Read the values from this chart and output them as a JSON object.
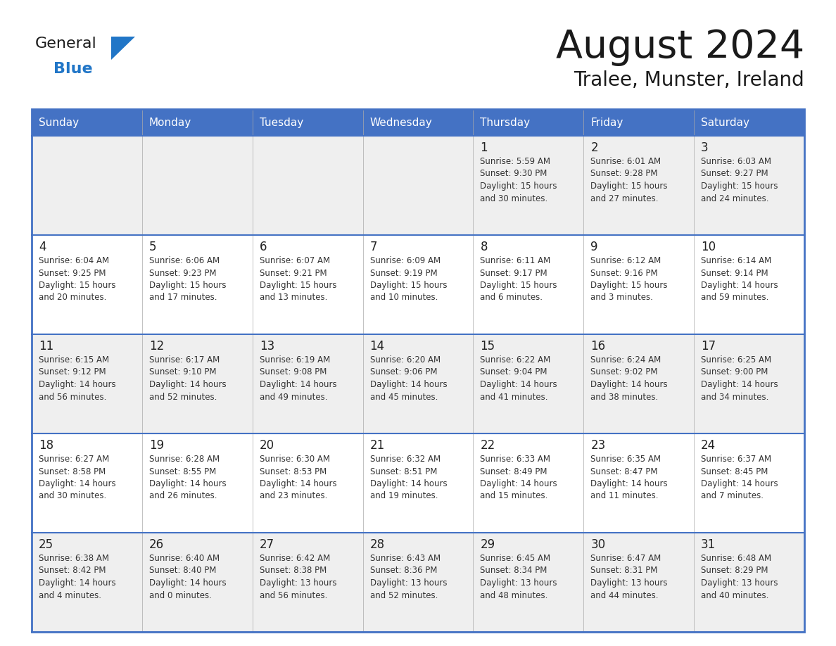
{
  "title": "August 2024",
  "subtitle": "Tralee, Munster, Ireland",
  "days_of_week": [
    "Sunday",
    "Monday",
    "Tuesday",
    "Wednesday",
    "Thursday",
    "Friday",
    "Saturday"
  ],
  "header_bg": "#4472C4",
  "header_text": "#FFFFFF",
  "border_color": "#4472C4",
  "row_border_color": "#4472C4",
  "cell_border_color": "#CCCCCC",
  "day_number_color": "#222222",
  "text_color": "#333333",
  "title_color": "#1a1a1a",
  "row_colors": [
    "#EFEFEF",
    "#FFFFFF",
    "#EFEFEF",
    "#FFFFFF",
    "#EFEFEF"
  ],
  "weeks": [
    [
      {
        "day": null,
        "info": ""
      },
      {
        "day": null,
        "info": ""
      },
      {
        "day": null,
        "info": ""
      },
      {
        "day": null,
        "info": ""
      },
      {
        "day": 1,
        "info": "Sunrise: 5:59 AM\nSunset: 9:30 PM\nDaylight: 15 hours\nand 30 minutes."
      },
      {
        "day": 2,
        "info": "Sunrise: 6:01 AM\nSunset: 9:28 PM\nDaylight: 15 hours\nand 27 minutes."
      },
      {
        "day": 3,
        "info": "Sunrise: 6:03 AM\nSunset: 9:27 PM\nDaylight: 15 hours\nand 24 minutes."
      }
    ],
    [
      {
        "day": 4,
        "info": "Sunrise: 6:04 AM\nSunset: 9:25 PM\nDaylight: 15 hours\nand 20 minutes."
      },
      {
        "day": 5,
        "info": "Sunrise: 6:06 AM\nSunset: 9:23 PM\nDaylight: 15 hours\nand 17 minutes."
      },
      {
        "day": 6,
        "info": "Sunrise: 6:07 AM\nSunset: 9:21 PM\nDaylight: 15 hours\nand 13 minutes."
      },
      {
        "day": 7,
        "info": "Sunrise: 6:09 AM\nSunset: 9:19 PM\nDaylight: 15 hours\nand 10 minutes."
      },
      {
        "day": 8,
        "info": "Sunrise: 6:11 AM\nSunset: 9:17 PM\nDaylight: 15 hours\nand 6 minutes."
      },
      {
        "day": 9,
        "info": "Sunrise: 6:12 AM\nSunset: 9:16 PM\nDaylight: 15 hours\nand 3 minutes."
      },
      {
        "day": 10,
        "info": "Sunrise: 6:14 AM\nSunset: 9:14 PM\nDaylight: 14 hours\nand 59 minutes."
      }
    ],
    [
      {
        "day": 11,
        "info": "Sunrise: 6:15 AM\nSunset: 9:12 PM\nDaylight: 14 hours\nand 56 minutes."
      },
      {
        "day": 12,
        "info": "Sunrise: 6:17 AM\nSunset: 9:10 PM\nDaylight: 14 hours\nand 52 minutes."
      },
      {
        "day": 13,
        "info": "Sunrise: 6:19 AM\nSunset: 9:08 PM\nDaylight: 14 hours\nand 49 minutes."
      },
      {
        "day": 14,
        "info": "Sunrise: 6:20 AM\nSunset: 9:06 PM\nDaylight: 14 hours\nand 45 minutes."
      },
      {
        "day": 15,
        "info": "Sunrise: 6:22 AM\nSunset: 9:04 PM\nDaylight: 14 hours\nand 41 minutes."
      },
      {
        "day": 16,
        "info": "Sunrise: 6:24 AM\nSunset: 9:02 PM\nDaylight: 14 hours\nand 38 minutes."
      },
      {
        "day": 17,
        "info": "Sunrise: 6:25 AM\nSunset: 9:00 PM\nDaylight: 14 hours\nand 34 minutes."
      }
    ],
    [
      {
        "day": 18,
        "info": "Sunrise: 6:27 AM\nSunset: 8:58 PM\nDaylight: 14 hours\nand 30 minutes."
      },
      {
        "day": 19,
        "info": "Sunrise: 6:28 AM\nSunset: 8:55 PM\nDaylight: 14 hours\nand 26 minutes."
      },
      {
        "day": 20,
        "info": "Sunrise: 6:30 AM\nSunset: 8:53 PM\nDaylight: 14 hours\nand 23 minutes."
      },
      {
        "day": 21,
        "info": "Sunrise: 6:32 AM\nSunset: 8:51 PM\nDaylight: 14 hours\nand 19 minutes."
      },
      {
        "day": 22,
        "info": "Sunrise: 6:33 AM\nSunset: 8:49 PM\nDaylight: 14 hours\nand 15 minutes."
      },
      {
        "day": 23,
        "info": "Sunrise: 6:35 AM\nSunset: 8:47 PM\nDaylight: 14 hours\nand 11 minutes."
      },
      {
        "day": 24,
        "info": "Sunrise: 6:37 AM\nSunset: 8:45 PM\nDaylight: 14 hours\nand 7 minutes."
      }
    ],
    [
      {
        "day": 25,
        "info": "Sunrise: 6:38 AM\nSunset: 8:42 PM\nDaylight: 14 hours\nand 4 minutes."
      },
      {
        "day": 26,
        "info": "Sunrise: 6:40 AM\nSunset: 8:40 PM\nDaylight: 14 hours\nand 0 minutes."
      },
      {
        "day": 27,
        "info": "Sunrise: 6:42 AM\nSunset: 8:38 PM\nDaylight: 13 hours\nand 56 minutes."
      },
      {
        "day": 28,
        "info": "Sunrise: 6:43 AM\nSunset: 8:36 PM\nDaylight: 13 hours\nand 52 minutes."
      },
      {
        "day": 29,
        "info": "Sunrise: 6:45 AM\nSunset: 8:34 PM\nDaylight: 13 hours\nand 48 minutes."
      },
      {
        "day": 30,
        "info": "Sunrise: 6:47 AM\nSunset: 8:31 PM\nDaylight: 13 hours\nand 44 minutes."
      },
      {
        "day": 31,
        "info": "Sunrise: 6:48 AM\nSunset: 8:29 PM\nDaylight: 13 hours\nand 40 minutes."
      }
    ]
  ],
  "logo_color_general": "#1a1a1a",
  "logo_color_blue": "#2176C7",
  "logo_triangle_color": "#2176C7"
}
